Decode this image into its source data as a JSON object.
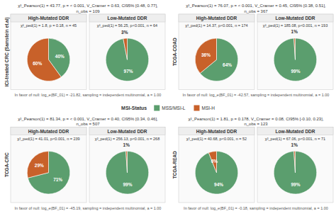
{
  "chart_data": [
    {
      "type": "pie",
      "title": "ICI-treated CRC (Samstein et.al)",
      "subtitle": "χ²_Pearson(1) = 43.77, p = < 0.001, V_Cramer = 0.63, CI95% [0.48, 0.77], n_obs = 109",
      "annotations": [
        "In favor of null: log_e(BF_01) = -21.82, sampling = independent multinomial, a = 1.00"
      ],
      "categories": [
        "MSS/MSI-L",
        "MSI-H"
      ],
      "colors": [
        "#5b9e6e",
        "#c8612a"
      ],
      "legend": "center",
      "legend_title": "MSI-Status",
      "data_labels": true,
      "series": [
        {
          "name": "High-Mutated DDR",
          "subtitle": "χ²_ped(1) = 1.8, p = 0.18, n = 45",
          "values": [
            40,
            60
          ],
          "value_labels": [
            "40%",
            "60%"
          ]
        },
        {
          "name": "Low-Mutated DDR",
          "subtitle": "χ²_ped(1) = 56.25, p<0.001, n = 64",
          "values": [
            97,
            3
          ],
          "value_labels": [
            "97%",
            "3%"
          ]
        }
      ]
    },
    {
      "type": "pie",
      "title": "TCGA-COAD",
      "subtitle": "χ²_Pearson(1) = 76.07, p = < 0.001, V_Cramer = 0.45, CI95% [0.38, 0.51], n_obs = 367",
      "annotations": [
        "In favor of null: log_e(BF_01) = -42.57, sampling = independent multinomial, a = 1.00"
      ],
      "data_labels": true,
      "series": [
        {
          "name": "High-Mutated DDR",
          "subtitle": "χ²_ped(1) = 14.37, p<0.001, n = 174",
          "values": [
            64,
            36
          ],
          "value_labels": [
            "64%",
            "36%"
          ]
        },
        {
          "name": "Low-Mutated DDR",
          "subtitle": "χ²_ped(1) = 185.08, p<0.001, n = 193",
          "values": [
            99,
            1
          ],
          "value_labels": [
            "99%",
            "1%"
          ]
        }
      ]
    },
    {
      "type": "pie",
      "title": "TCGA-CRC",
      "subtitle": "χ²_Pearson(1) = 81.34, p = < 0.001, V_Cramer = 0.40, CI95% [0.34, 0.46], n_obs = 507",
      "annotations": [
        "In favor of null: log_e(BF_01) = -45.19, sampling = independent multinomial, a = 1.00"
      ],
      "data_labels": true,
      "series": [
        {
          "name": "High-Mutated DDR",
          "subtitle": "χ²_ped(1) = 41.01, p<0.001, n = 239",
          "values": [
            71,
            29
          ],
          "value_labels": [
            "71%",
            "29%"
          ]
        },
        {
          "name": "Low-Mutated DDR",
          "subtitle": "χ²_ped(1) = 256.13, p<0.001, n = 268",
          "values": [
            99,
            1
          ],
          "value_labels": [
            "99%",
            "1%"
          ]
        }
      ]
    },
    {
      "type": "pie",
      "title": "TCGA-READ",
      "subtitle": "χ²_Pearson(1) = 1.81, p = 0.178, V_Cramer = 0.08, CI95% [-0.10, 0.23], n_obs = 123",
      "annotations": [
        "In favor of null: log_e(BF_01) = -0.18, sampling = independent multinomial, a = 1.00"
      ],
      "data_labels": true,
      "series": [
        {
          "name": "High-Mutated DDR",
          "subtitle": "χ²_ped(1) = 40.68, p<0.001, n = 52",
          "values": [
            94,
            6
          ],
          "value_labels": [
            "94%",
            "6%"
          ]
        },
        {
          "name": "Low-Mutated DDR",
          "subtitle": "χ²_ped(1) = 67.06, p<0.001, n = 71",
          "values": [
            99,
            1
          ],
          "value_labels": [
            "99%",
            "1%"
          ]
        }
      ]
    }
  ]
}
